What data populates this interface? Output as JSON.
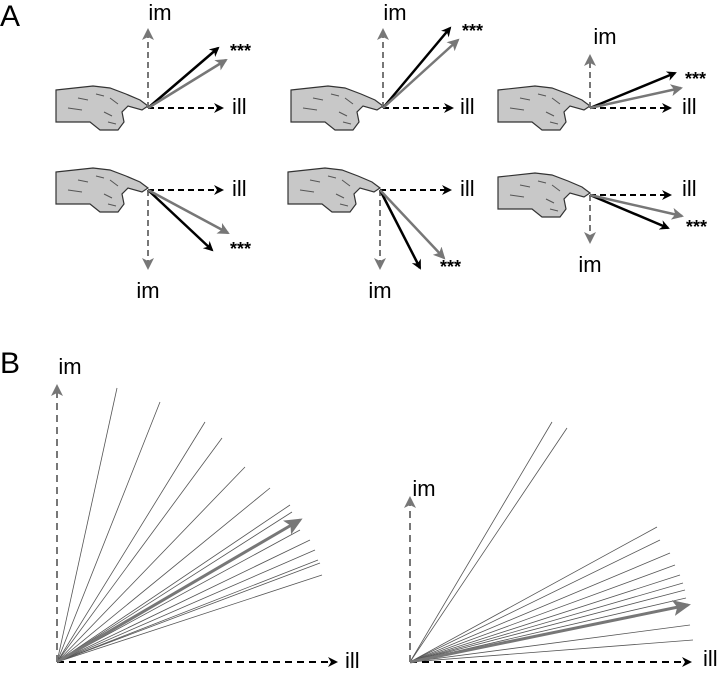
{
  "panel_a": {
    "label": "A",
    "cells": [
      {
        "im": "im",
        "ill": "ill",
        "stars": "***"
      },
      {
        "im": "im",
        "ill": "ill",
        "stars": "***"
      },
      {
        "im": "im",
        "ill": "ill",
        "stars": "***"
      },
      {
        "im": "im",
        "ill": "ill",
        "stars": "***"
      },
      {
        "im": "im",
        "ill": "ill",
        "stars": "***"
      },
      {
        "im": "im",
        "ill": "ill",
        "stars": "***"
      }
    ]
  },
  "panel_b": {
    "label": "B",
    "plots": [
      {
        "im": "im",
        "ill": "ill"
      },
      {
        "im": "im",
        "ill": "ill"
      }
    ]
  }
}
